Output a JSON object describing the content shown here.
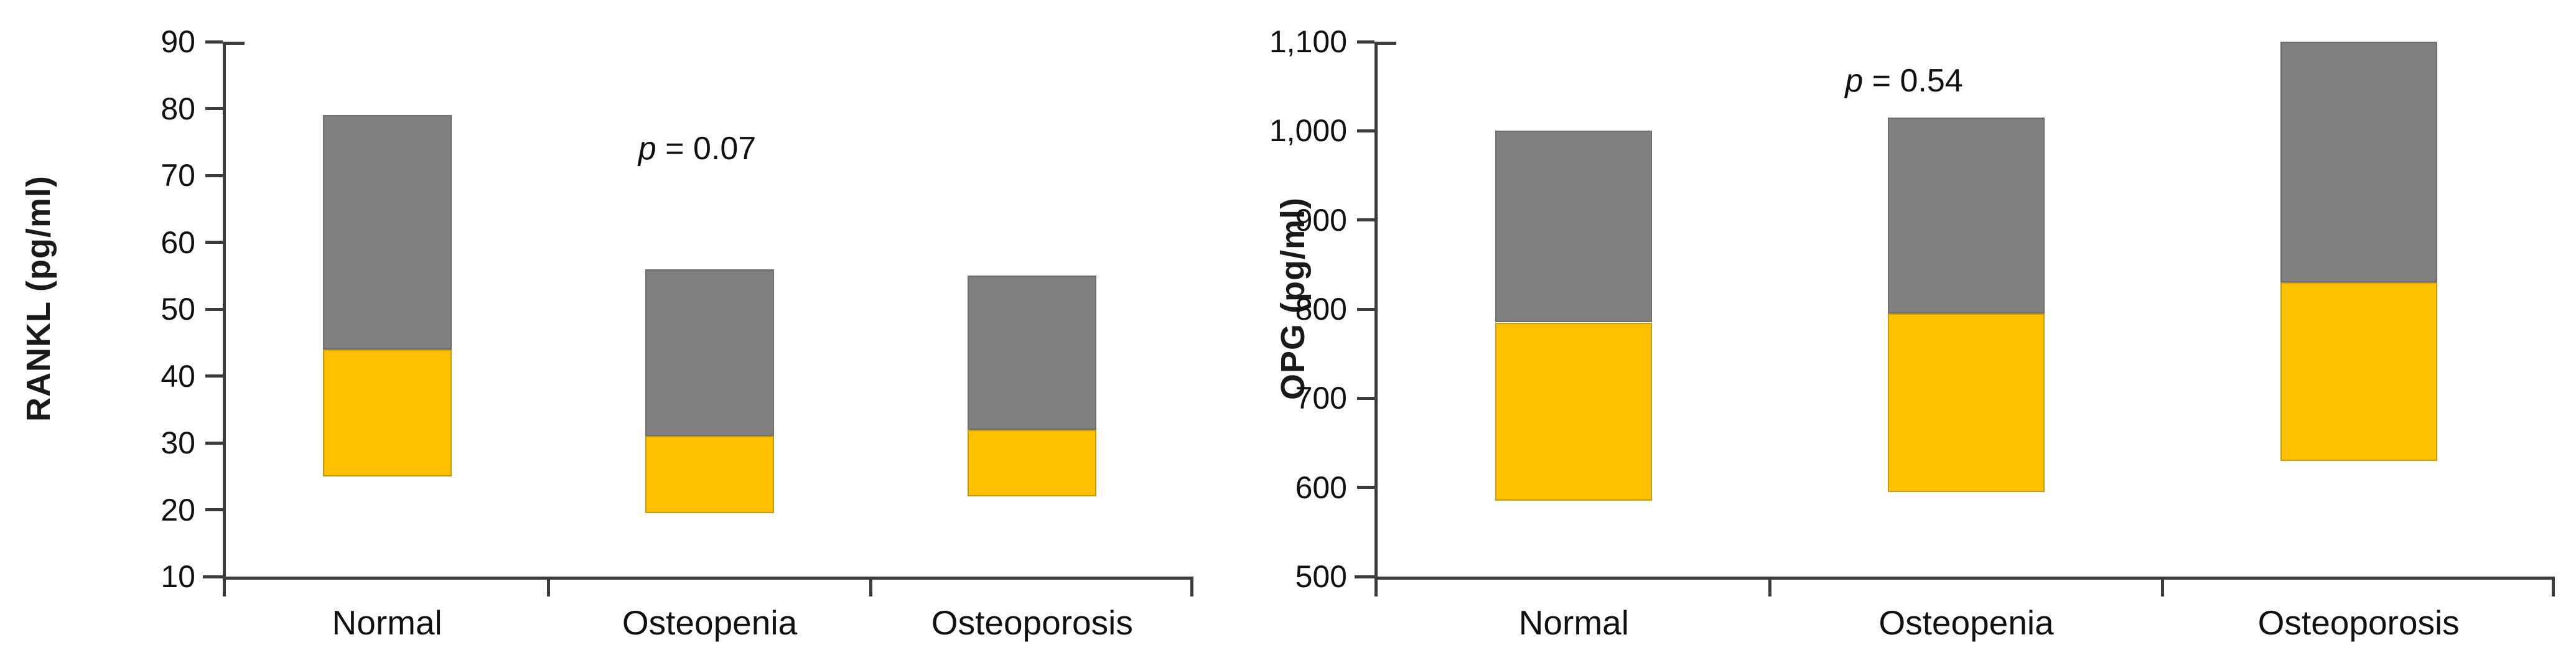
{
  "figure_kind": "two-panel floating stacked bar figure",
  "colors": {
    "lower_segment": "#FFC000",
    "upper_segment": "#808080",
    "axis": "#3c3c3c",
    "text": "#111111"
  },
  "chart_data": [
    {
      "type": "bar",
      "subtype": "floating-stacked-range-bars",
      "title": "",
      "xlabel": "",
      "ylabel": "RANKL (pg/ml)",
      "ylim": [
        10,
        90
      ],
      "ytick_values": [
        90,
        80,
        70,
        60,
        50,
        40,
        30,
        20,
        10
      ],
      "ytick_labels": [
        "90",
        "80",
        "70",
        "60",
        "50",
        "40",
        "30",
        "20",
        "10"
      ],
      "grid": "off",
      "legend": "none",
      "categories": [
        "Normal",
        "Osteopenia",
        "Osteoporosis"
      ],
      "series": [
        {
          "name": "lower-range-segment",
          "color": "#FFC000",
          "from": [
            25,
            19.5,
            22
          ],
          "to": [
            44,
            31,
            32
          ]
        },
        {
          "name": "upper-range-segment",
          "color": "#808080",
          "from": [
            44,
            31,
            32
          ],
          "to": [
            79,
            56,
            55
          ]
        }
      ],
      "bars": [
        {
          "category": "Normal",
          "low": 25,
          "mid": 44,
          "high": 79
        },
        {
          "category": "Osteopenia",
          "low": 19.5,
          "mid": 31,
          "high": 56
        },
        {
          "category": "Osteoporosis",
          "low": 22,
          "mid": 32,
          "high": 55
        }
      ],
      "annotation": {
        "label": "p = 0.07",
        "italic_part": "p",
        "rest": " = 0.07",
        "y_value": 74,
        "over_category_index": 1
      }
    },
    {
      "type": "bar",
      "subtype": "floating-stacked-range-bars",
      "title": "",
      "xlabel": "",
      "ylabel": "OPG (pg/ml)",
      "ylim": [
        500,
        1100
      ],
      "ytick_values": [
        1100,
        1000,
        900,
        800,
        700,
        600,
        500
      ],
      "ytick_labels": [
        "1,100",
        "1,000",
        "900",
        "800",
        "700",
        "600",
        "500"
      ],
      "grid": "off",
      "legend": "none",
      "categories": [
        "Normal",
        "Osteopenia",
        "Osteoporosis"
      ],
      "series": [
        {
          "name": "lower-range-segment",
          "color": "#FFC000",
          "from": [
            585,
            595,
            630
          ],
          "to": [
            785,
            795,
            830
          ]
        },
        {
          "name": "upper-range-segment",
          "color": "#808080",
          "from": [
            785,
            795,
            830
          ],
          "to": [
            1000,
            1015,
            1100
          ]
        }
      ],
      "bars": [
        {
          "category": "Normal",
          "low": 585,
          "mid": 785,
          "high": 1000
        },
        {
          "category": "Osteopenia",
          "low": 595,
          "mid": 795,
          "high": 1015
        },
        {
          "category": "Osteoporosis",
          "low": 630,
          "mid": 830,
          "high": 1100
        }
      ],
      "annotation": {
        "label": "p = 0.54",
        "italic_part": "p",
        "rest": " = 0.54",
        "y_value": 1056,
        "over_category_index": 1
      }
    }
  ]
}
